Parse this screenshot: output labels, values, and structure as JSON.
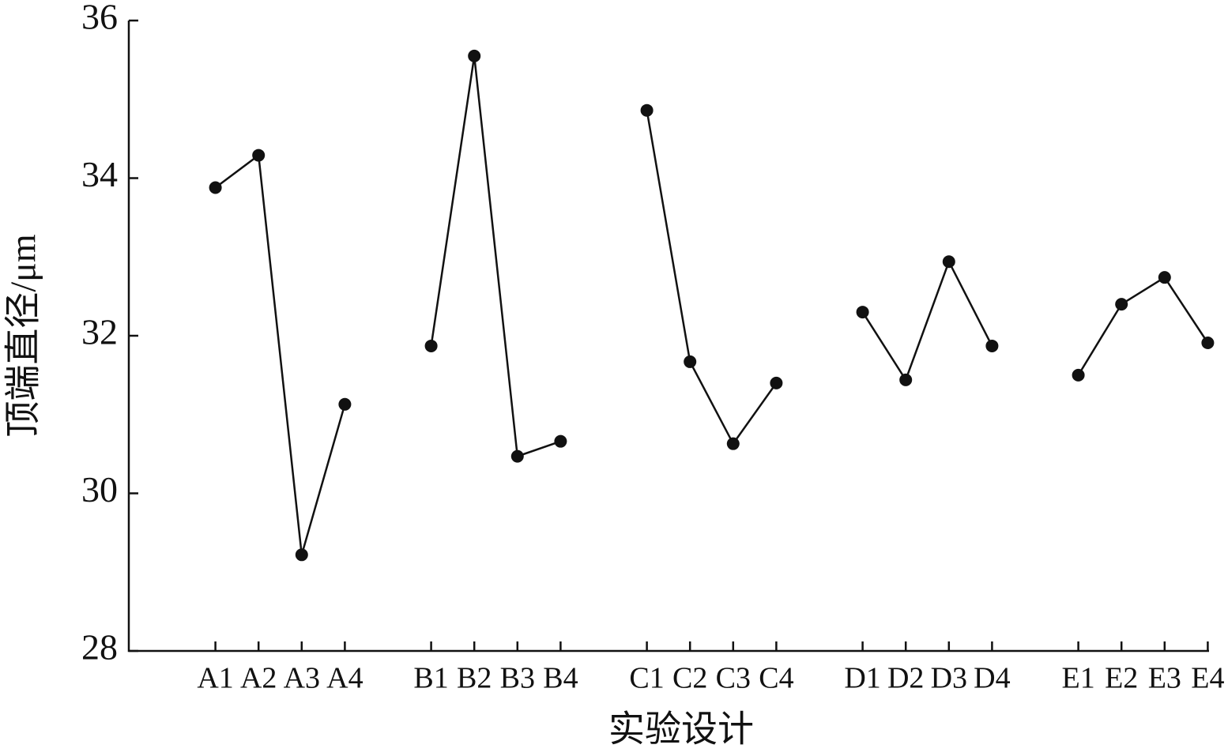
{
  "chart_data": {
    "type": "line",
    "x_label": "实验设计",
    "y_label": "顶端直径/μm",
    "categories": [
      null,
      "A1",
      "A2",
      "A3",
      "A4",
      null,
      "B1",
      "B2",
      "B3",
      "B4",
      null,
      "C1",
      "C2",
      "C3",
      "C4",
      null,
      "D1",
      "D2",
      "D3",
      "D4",
      null,
      "E1",
      "E2",
      "E3",
      "E4"
    ],
    "values": [
      null,
      33.88,
      34.29,
      29.22,
      31.13,
      null,
      31.87,
      35.55,
      30.47,
      30.66,
      null,
      34.86,
      31.67,
      30.63,
      31.4,
      null,
      32.3,
      31.44,
      32.94,
      31.87,
      null,
      31.5,
      32.4,
      32.74,
      31.91
    ],
    "color": "#111111",
    "ylim": [
      28,
      36
    ],
    "yticks": [
      28,
      30,
      32,
      34,
      36
    ]
  }
}
